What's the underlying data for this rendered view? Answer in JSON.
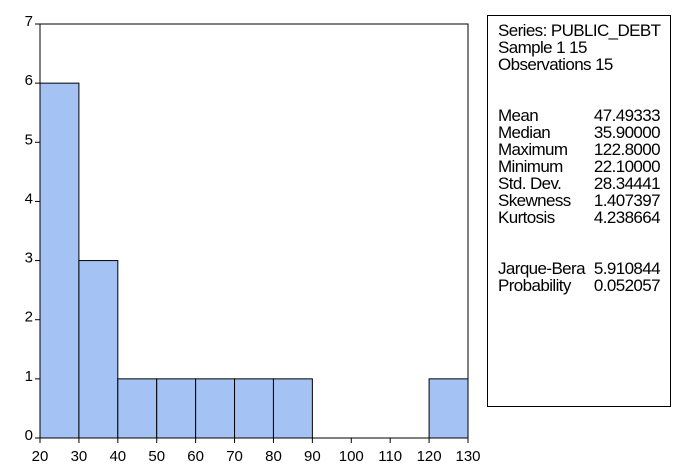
{
  "chart_data": {
    "type": "histogram",
    "bins": [
      {
        "from": 20,
        "to": 30,
        "count": 6
      },
      {
        "from": 30,
        "to": 40,
        "count": 3
      },
      {
        "from": 40,
        "to": 50,
        "count": 1
      },
      {
        "from": 50,
        "to": 60,
        "count": 1
      },
      {
        "from": 60,
        "to": 70,
        "count": 1
      },
      {
        "from": 70,
        "to": 80,
        "count": 1
      },
      {
        "from": 80,
        "to": 90,
        "count": 1
      },
      {
        "from": 90,
        "to": 100,
        "count": 0
      },
      {
        "from": 100,
        "to": 110,
        "count": 0
      },
      {
        "from": 110,
        "to": 120,
        "count": 0
      },
      {
        "from": 120,
        "to": 130,
        "count": 1
      }
    ],
    "xlim": [
      20,
      130
    ],
    "ylim": [
      0,
      7
    ],
    "x_ticks": [
      "20",
      "30",
      "40",
      "50",
      "60",
      "70",
      "80",
      "90",
      "100",
      "110",
      "120",
      "130"
    ],
    "y_ticks": [
      "0",
      "1",
      "2",
      "3",
      "4",
      "5",
      "6",
      "7"
    ],
    "bar_color": "#a4c2f4",
    "grid": false
  },
  "stats": {
    "series_label": "Series: PUBLIC_DEBT",
    "sample_label": "Sample 1 15",
    "observations_label": "Observations 15",
    "rows": [
      {
        "label": "Mean",
        "value": "47.49333"
      },
      {
        "label": "Median",
        "value": "35.90000"
      },
      {
        "label": "Maximum",
        "value": "122.8000"
      },
      {
        "label": "Minimum",
        "value": "22.10000"
      },
      {
        "label": "Std. Dev.",
        "value": "28.34441"
      },
      {
        "label": "Skewness",
        "value": "1.407397"
      },
      {
        "label": "Kurtosis",
        "value": "4.238664"
      }
    ],
    "test_rows": [
      {
        "label": "Jarque-Bera",
        "value": "5.910844"
      },
      {
        "label": "Probability",
        "value": "0.052057"
      }
    ]
  }
}
